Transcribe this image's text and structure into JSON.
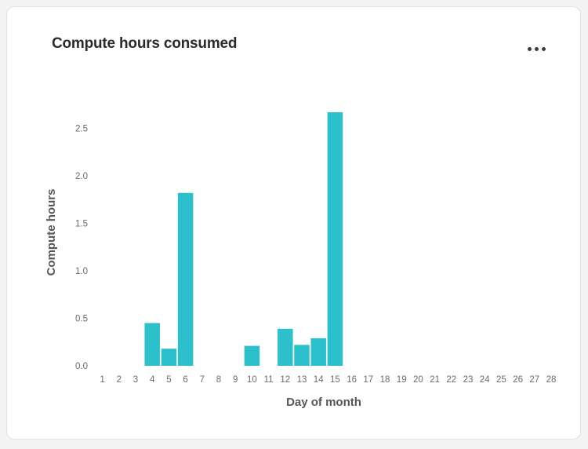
{
  "card": {
    "title": "Compute hours consumed",
    "menu_icon": "ellipsis-horizontal"
  },
  "chart_data": {
    "type": "bar",
    "title": "Compute hours consumed",
    "xlabel": "Day of month",
    "ylabel": "Compute hours",
    "categories": [
      "1",
      "2",
      "3",
      "4",
      "5",
      "6",
      "7",
      "8",
      "9",
      "10",
      "11",
      "12",
      "13",
      "14",
      "15",
      "16",
      "17",
      "18",
      "19",
      "20",
      "21",
      "22",
      "23",
      "24",
      "25",
      "26",
      "27",
      "28"
    ],
    "values": [
      0,
      0,
      0,
      0.45,
      0.18,
      1.82,
      0,
      0,
      0,
      0.21,
      0,
      0.39,
      0.22,
      0.29,
      2.67,
      0,
      0,
      0,
      0,
      0,
      0,
      0,
      0,
      0,
      0,
      0,
      0,
      0
    ],
    "yticks": [
      "0.0",
      "0.5",
      "1.0",
      "1.5",
      "2.0",
      "2.5"
    ],
    "ylim": [
      0,
      2.8
    ],
    "bar_color": "#2bc0cb",
    "grid": false,
    "legend": "none"
  }
}
